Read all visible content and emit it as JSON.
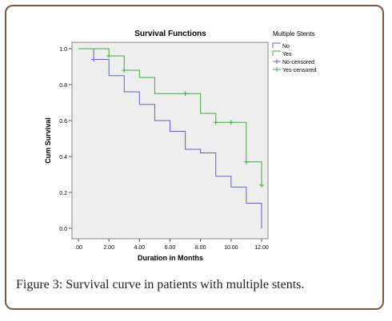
{
  "chart_data": {
    "type": "line",
    "title": "Survival Functions",
    "xlabel": "Duration in Months",
    "ylabel": "Cum Survival",
    "xlim": [
      0,
      12
    ],
    "ylim": [
      0,
      1.0
    ],
    "x_ticks": [
      ".00",
      "2.00",
      "4.00",
      "6.00",
      "8.00",
      "10.00",
      "12.00"
    ],
    "y_ticks": [
      "0.0",
      "0.2",
      "0.4",
      "0.6",
      "0.8",
      "1.0"
    ],
    "legend": {
      "title": "Multiple Stents",
      "position": "right",
      "entries": [
        "No",
        "Yes",
        "No-censored",
        "Yes-censored"
      ]
    },
    "series": [
      {
        "name": "No",
        "color": "#5b63c9",
        "step_x": [
          0,
          1,
          2,
          3,
          4,
          5,
          6,
          7,
          8,
          9,
          10,
          11,
          12
        ],
        "step_y": [
          1.0,
          0.94,
          0.85,
          0.76,
          0.69,
          0.6,
          0.54,
          0.44,
          0.42,
          0.29,
          0.23,
          0.14,
          0.0
        ],
        "censored": [
          {
            "x": 1,
            "y": 0.94
          }
        ]
      },
      {
        "name": "Yes",
        "color": "#3fae3f",
        "step_x": [
          0,
          2,
          3,
          4,
          5,
          8,
          9,
          11,
          12
        ],
        "step_y": [
          1.0,
          0.96,
          0.88,
          0.84,
          0.75,
          0.64,
          0.59,
          0.37,
          0.24
        ],
        "censored": [
          {
            "x": 2,
            "y": 0.96
          },
          {
            "x": 3,
            "y": 0.88
          },
          {
            "x": 7,
            "y": 0.75
          },
          {
            "x": 9,
            "y": 0.59
          },
          {
            "x": 10,
            "y": 0.59
          },
          {
            "x": 11,
            "y": 0.37
          },
          {
            "x": 12,
            "y": 0.24
          }
        ]
      }
    ]
  },
  "caption": {
    "label": "Figure 3:",
    "text": " Survival curve in patients with multiple stents."
  }
}
